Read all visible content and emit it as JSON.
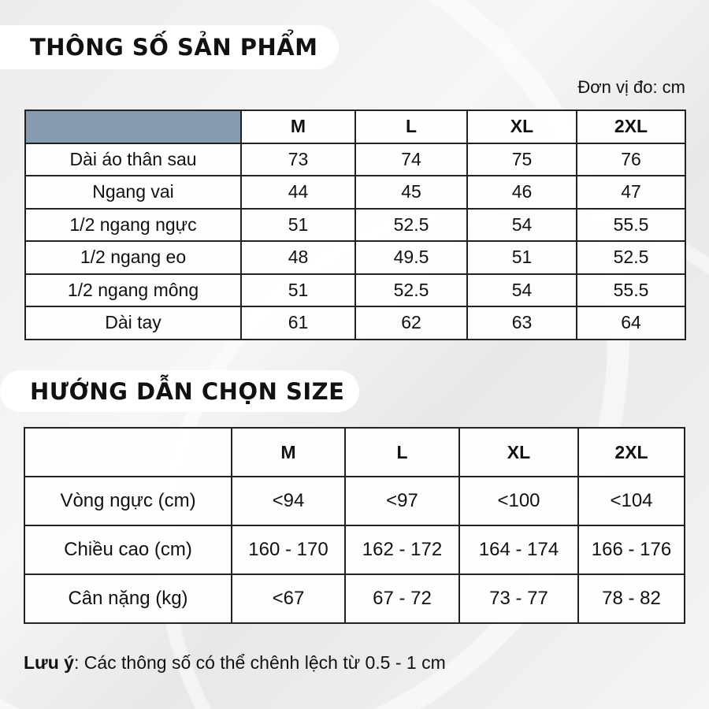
{
  "specs": {
    "title": "THÔNG SỐ SẢN PHẨM",
    "unit": "Đơn vị đo: cm",
    "header_color": "#869bb0",
    "sizes": [
      "M",
      "L",
      "XL",
      "2XL"
    ],
    "rows": [
      {
        "label": "Dài áo thân sau",
        "values": [
          "73",
          "74",
          "75",
          "76"
        ]
      },
      {
        "label": "Ngang vai",
        "values": [
          "44",
          "45",
          "46",
          "47"
        ]
      },
      {
        "label": "1/2 ngang ngực",
        "values": [
          "51",
          "52.5",
          "54",
          "55.5"
        ]
      },
      {
        "label": "1/2 ngang eo",
        "values": [
          "48",
          "49.5",
          "51",
          "52.5"
        ]
      },
      {
        "label": "1/2 ngang mông",
        "values": [
          "51",
          "52.5",
          "54",
          "55.5"
        ]
      },
      {
        "label": "Dài tay",
        "values": [
          "61",
          "62",
          "63",
          "64"
        ]
      }
    ]
  },
  "guide": {
    "title": "HƯỚNG DẪN CHỌN SIZE",
    "sizes": [
      "M",
      "L",
      "XL",
      "2XL"
    ],
    "rows": [
      {
        "label": "Vòng ngực (cm)",
        "values": [
          "<94",
          "<97",
          "<100",
          "<104"
        ]
      },
      {
        "label": "Chiều cao (cm)",
        "values": [
          "160 - 170",
          "162 - 172",
          "164 - 174",
          "166 - 176"
        ]
      },
      {
        "label": "Cân nặng (kg)",
        "values": [
          "<67",
          "67 - 72",
          "73 - 77",
          "78 - 82"
        ]
      }
    ]
  },
  "note": {
    "label": "Lưu ý",
    "text": ": Các thông số có thể chênh lệch từ 0.5 - 1 cm"
  }
}
